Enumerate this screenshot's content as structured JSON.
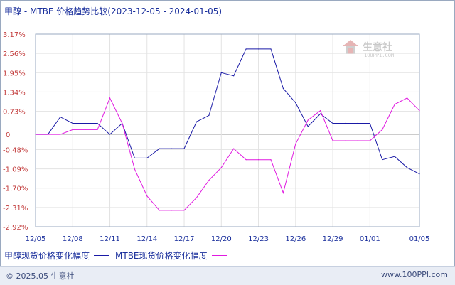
{
  "chart_data": {
    "type": "line",
    "title": "甲醇 - MTBE 价格趋势比较(2023-12-05 - 2024-01-05)",
    "y_ticks": [
      "3.17%",
      "2.56%",
      "1.95%",
      "1.34%",
      "0.73%",
      "0",
      "-0.48%",
      "-1.09%",
      "-1.70%",
      "-2.31%",
      "-2.92%"
    ],
    "y_tick_values": [
      3.17,
      2.56,
      1.95,
      1.34,
      0.73,
      0,
      -0.48,
      -1.09,
      -1.7,
      -2.31,
      -2.92
    ],
    "ylim": [
      -2.92,
      3.17
    ],
    "x_ticks": [
      "12/05",
      "12/08",
      "12/11",
      "12/14",
      "12/17",
      "12/20",
      "12/23",
      "12/26",
      "12/29",
      "01/01",
      "01/05"
    ],
    "x": [
      "12/05",
      "12/06",
      "12/07",
      "12/08",
      "12/09",
      "12/10",
      "12/11",
      "12/12",
      "12/13",
      "12/14",
      "12/15",
      "12/16",
      "12/17",
      "12/18",
      "12/19",
      "12/20",
      "12/21",
      "12/22",
      "12/23",
      "12/24",
      "12/25",
      "12/26",
      "12/27",
      "12/28",
      "12/29",
      "12/30",
      "12/31",
      "01/01",
      "01/02",
      "01/03",
      "01/04",
      "01/05"
    ],
    "series": [
      {
        "name": "甲醇现货价格变化幅度",
        "color": "#1a1aa6",
        "values": [
          0,
          0,
          0.55,
          0.35,
          0.35,
          0.35,
          0,
          0.35,
          -0.75,
          -0.75,
          -0.45,
          -0.45,
          -0.45,
          0.4,
          0.6,
          1.95,
          1.85,
          2.7,
          2.7,
          2.7,
          1.45,
          1.0,
          0.25,
          0.65,
          0.35,
          0.35,
          0.35,
          0.35,
          -0.8,
          -0.7,
          -1.05,
          -1.25
        ]
      },
      {
        "name": "MTBE现货价格变化幅度",
        "color": "#e01ae0",
        "values": [
          0,
          0,
          0,
          0.15,
          0.15,
          0.15,
          1.15,
          0.35,
          -1.1,
          -1.95,
          -2.4,
          -2.4,
          -2.4,
          -2.0,
          -1.45,
          -1.05,
          -0.45,
          -0.8,
          -0.8,
          -0.8,
          -1.85,
          -0.3,
          0.45,
          0.75,
          -0.2,
          -0.2,
          -0.2,
          -0.2,
          0.15,
          0.95,
          1.15,
          0.75
        ]
      }
    ],
    "grid": true,
    "legend_position": "bottom-left"
  },
  "footer": {
    "copyright": "© 2025.05 生意社",
    "site": "www.100PPI.com"
  },
  "watermark": {
    "name": "生意社",
    "sub": "100PPI.COM"
  }
}
